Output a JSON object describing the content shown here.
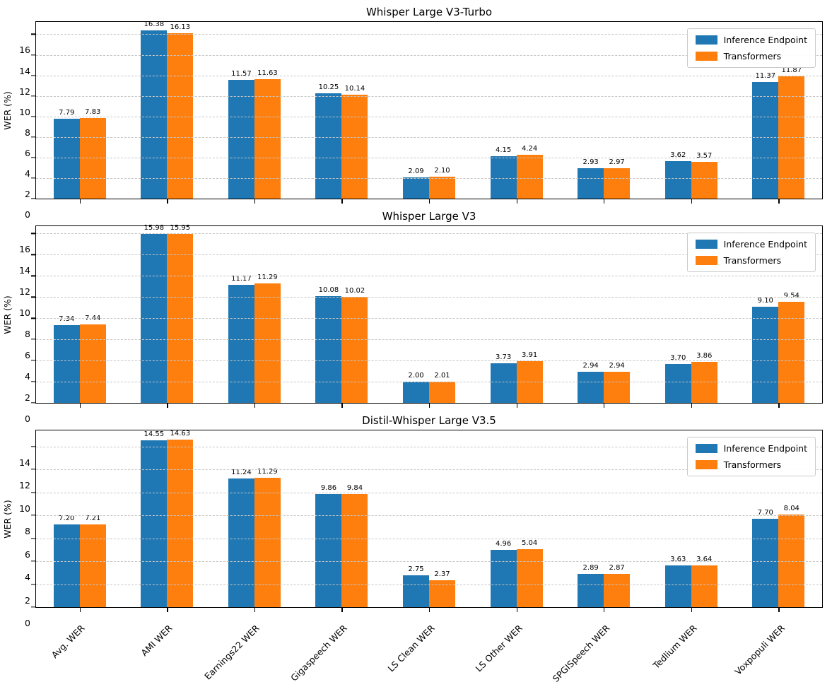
{
  "figure": {
    "ylabel": "WER (%)",
    "legend_labels": [
      "Inference Endpoint",
      "Transformers"
    ],
    "series_colors": [
      "#1f77b4",
      "#ff7f0e"
    ],
    "grid_color": "#c6c6c6"
  },
  "chart_data": [
    {
      "type": "bar",
      "title": "Whisper Large V3-Turbo",
      "ylabel": "WER (%)",
      "grid": true,
      "legend_position": "upper right",
      "categories": [
        "Avg. WER",
        "AMI WER",
        "Earnings22 WER",
        "Gigaspeech WER",
        "LS Clean WER",
        "LS Other WER",
        "SPGISpeech WER",
        "Tedlium WER",
        "Voxpopuli WER"
      ],
      "series": [
        {
          "name": "Inference Endpoint",
          "color": "#1f77b4",
          "values": [
            7.79,
            16.38,
            11.57,
            10.25,
            2.09,
            4.15,
            2.93,
            3.62,
            11.37
          ]
        },
        {
          "name": "Transformers",
          "color": "#ff7f0e",
          "values": [
            7.83,
            16.13,
            11.63,
            10.14,
            2.1,
            4.24,
            2.97,
            3.57,
            11.87
          ]
        }
      ],
      "yticks": [
        0,
        2,
        4,
        6,
        8,
        10,
        12,
        14,
        16
      ],
      "ylim": [
        0,
        17.2
      ]
    },
    {
      "type": "bar",
      "title": "Whisper Large V3",
      "ylabel": "WER (%)",
      "grid": true,
      "legend_position": "upper right",
      "categories": [
        "Avg. WER",
        "AMI WER",
        "Earnings22 WER",
        "Gigaspeech WER",
        "LS Clean WER",
        "LS Other WER",
        "SPGISpeech WER",
        "Tedlium WER",
        "Voxpopuli WER"
      ],
      "series": [
        {
          "name": "Inference Endpoint",
          "color": "#1f77b4",
          "values": [
            7.34,
            15.98,
            11.17,
            10.08,
            2.0,
            3.73,
            2.94,
            3.7,
            9.1
          ]
        },
        {
          "name": "Transformers",
          "color": "#ff7f0e",
          "values": [
            7.44,
            15.95,
            11.29,
            10.02,
            2.01,
            3.91,
            2.94,
            3.86,
            9.54
          ]
        }
      ],
      "yticks": [
        0,
        2,
        4,
        6,
        8,
        10,
        12,
        14,
        16
      ],
      "ylim": [
        0,
        16.7
      ]
    },
    {
      "type": "bar",
      "title": "Distil-Whisper Large V3.5",
      "ylabel": "WER (%)",
      "grid": true,
      "legend_position": "upper right",
      "categories": [
        "Avg. WER",
        "AMI WER",
        "Earnings22 WER",
        "Gigaspeech WER",
        "LS Clean WER",
        "LS Other WER",
        "SPGISpeech WER",
        "Tedlium WER",
        "Voxpopuli WER"
      ],
      "series": [
        {
          "name": "Inference Endpoint",
          "color": "#1f77b4",
          "values": [
            7.2,
            14.55,
            11.24,
            9.86,
            2.75,
            4.96,
            2.89,
            3.63,
            7.7
          ]
        },
        {
          "name": "Transformers",
          "color": "#ff7f0e",
          "values": [
            7.21,
            14.63,
            11.29,
            9.84,
            2.37,
            5.04,
            2.87,
            3.64,
            8.04
          ]
        }
      ],
      "yticks": [
        0,
        2,
        4,
        6,
        8,
        10,
        12,
        14
      ],
      "ylim": [
        0,
        15.4
      ]
    }
  ]
}
